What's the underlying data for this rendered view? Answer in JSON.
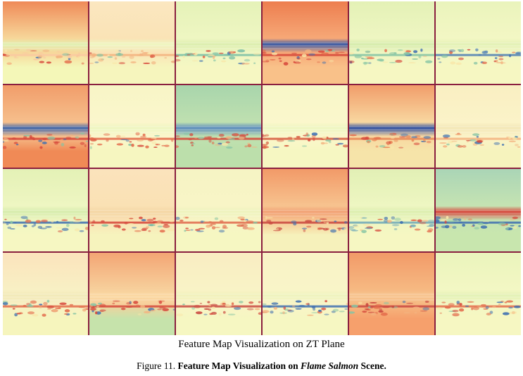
{
  "grid": {
    "rows": 4,
    "cols": 6,
    "caption": "Feature Map Visualization on ZT Plane",
    "border_color": "#8a1f3f",
    "tiles": [
      {
        "top": "#ef8a58",
        "mid": "#f7d79a",
        "bottom": "#f4f7b8",
        "band": "#e1f0b2",
        "stripe": "#f9c9a0"
      },
      {
        "top": "#fbe7c0",
        "mid": "#fae3b6",
        "bottom": "#f6f5bd",
        "band": "#eef6c0",
        "stripe": "#f3b27f"
      },
      {
        "top": "#e5f2b8",
        "mid": "#eef6c2",
        "bottom": "#f6f7c2",
        "band": "#dceeae",
        "stripe": "#7bbfa6"
      },
      {
        "top": "#ed7e4f",
        "mid": "#f6a877",
        "bottom": "#f9c189",
        "band": "#3a5aa4",
        "stripe": "#d6463a"
      },
      {
        "top": "#e4f1b6",
        "mid": "#eef6c2",
        "bottom": "#f6f7c2",
        "band": "#d6ecac",
        "stripe": "#86c4a4"
      },
      {
        "top": "#eaf4bc",
        "mid": "#f3f7c4",
        "bottom": "#f6f7c2",
        "band": "#e3f1b5",
        "stripe": "#4f7fb4"
      },
      {
        "top": "#f19d6a",
        "mid": "#f6bf8c",
        "bottom": "#f08a56",
        "band": "#3f65a8",
        "stripe": "#d6463a"
      },
      {
        "top": "#f7f5c6",
        "mid": "#fbf6cc",
        "bottom": "#f6f6c0",
        "band": "#eef6c0",
        "stripe": "#e36a4a"
      },
      {
        "top": "#a8d5ac",
        "mid": "#bfe0b0",
        "bottom": "#bcdfab",
        "band": "#5b8cbc",
        "stripe": "#d6463a"
      },
      {
        "top": "#f7f7c8",
        "mid": "#fbf7cc",
        "bottom": "#f6f7c2",
        "band": "#eef6c0",
        "stripe": "#d65a3f"
      },
      {
        "top": "#f19d6a",
        "mid": "#f8d7a0",
        "bottom": "#f6e4a9",
        "band": "#2f4fa0",
        "stripe": "#e98556"
      },
      {
        "top": "#f9efc2",
        "mid": "#fbf3c8",
        "bottom": "#f6f3bd",
        "band": "#f3e7b6",
        "stripe": "#f3b27f"
      },
      {
        "top": "#e4f1b6",
        "mid": "#eef6c2",
        "bottom": "#f6f7c2",
        "band": "#d6ecac",
        "stripe": "#3e6fb0"
      },
      {
        "top": "#fbe3bc",
        "mid": "#fae1b4",
        "bottom": "#f6f3bd",
        "band": "#f4d6a4",
        "stripe": "#d6463a"
      },
      {
        "top": "#f6f4c4",
        "mid": "#f8f5c6",
        "bottom": "#f6f7c2",
        "band": "#eef3bd",
        "stripe": "#e06a4c"
      },
      {
        "top": "#f29a68",
        "mid": "#f7c38f",
        "bottom": "#f6f1bb",
        "band": "#f1a073",
        "stripe": "#c9473f"
      },
      {
        "top": "#e2f0b5",
        "mid": "#eef6c2",
        "bottom": "#f6f7c2",
        "band": "#dceeae",
        "stripe": "#6fa8b9"
      },
      {
        "top": "#aad5b6",
        "mid": "#c5e3b2",
        "bottom": "#c8e6ae",
        "band": "#d6463a",
        "stripe": "#3e6fb0"
      },
      {
        "top": "#fbe3bc",
        "mid": "#f8f0c4",
        "bottom": "#f6f5bd",
        "band": "#f2e9b8",
        "stripe": "#e36a4a"
      },
      {
        "top": "#f3a574",
        "mid": "#f7d09c",
        "bottom": "#c6e3ab",
        "band": "#fbd8a2",
        "stripe": "#d6463a"
      },
      {
        "top": "#f9edc2",
        "mid": "#f9f3c6",
        "bottom": "#f6f7c2",
        "band": "#f1f1bb",
        "stripe": "#c9473f"
      },
      {
        "top": "#f9f2c6",
        "mid": "#f9f5c8",
        "bottom": "#f6f7c2",
        "band": "#eef3bd",
        "stripe": "#3e6fb0"
      },
      {
        "top": "#f29a68",
        "mid": "#f6b982",
        "bottom": "#f6a06c",
        "band": "#f7c590",
        "stripe": "#c9473f"
      },
      {
        "top": "#eaf4bc",
        "mid": "#f3f7c4",
        "bottom": "#f6f7c2",
        "band": "#e3f1b5",
        "stripe": "#e36a4a"
      }
    ]
  },
  "figure_caption": {
    "prefix": "Figure 11.",
    "bold_before": "Feature Map Visualization on",
    "italic": "Flame Salmon",
    "bold_after": "Scene."
  }
}
